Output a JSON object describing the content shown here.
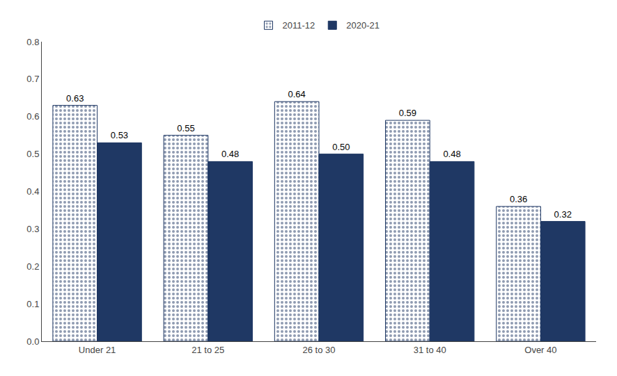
{
  "chart_data": {
    "type": "bar",
    "categories": [
      "Under 21",
      "21 to 25",
      "26 to 30",
      "31 to 40",
      "Over 40"
    ],
    "series": [
      {
        "name": "2011-12",
        "color": "#1F3864",
        "marker": "dots",
        "values": [
          0.63,
          0.55,
          0.64,
          0.59,
          0.36
        ],
        "value_labels": [
          "0.63",
          "0.55",
          "0.64",
          "0.59",
          "0.36"
        ]
      },
      {
        "name": "2020-21",
        "color": "#1F3864",
        "values": [
          0.53,
          0.48,
          0.5,
          0.48,
          0.32
        ],
        "value_labels": [
          "0.53",
          "0.48",
          "0.50",
          "0.48",
          "0.32"
        ]
      }
    ],
    "ylim": [
      0.0,
      0.8
    ],
    "yticks": [
      {
        "value": 0.0,
        "label": "0.0"
      },
      0.1,
      0.2,
      0.3,
      0.4,
      0.5,
      0.6,
      0.7,
      0.8
    ],
    "grid": false,
    "legend": "top",
    "data_labels": true
  }
}
